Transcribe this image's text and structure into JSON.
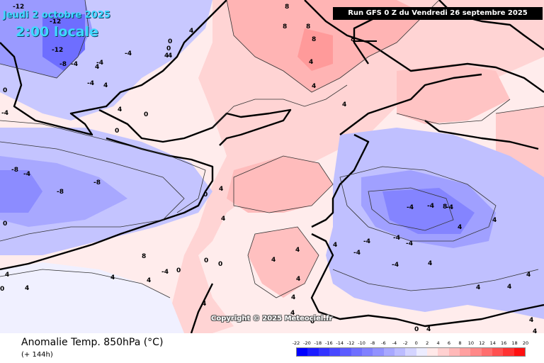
{
  "header": {
    "date": "Jeudi 2 octobre 2025",
    "time": "2:00 locale",
    "run_banner": "Run GFS 0 Z du Vendredi 26 septembre 2025"
  },
  "footer": {
    "title": "Anomalie Temp. 850hPa (°C)",
    "subtitle": "(+ 144h)",
    "copyright": "Copyright © 2025 Meteociel.fr"
  },
  "legend": {
    "ticks": [
      "-22",
      "-20",
      "-18",
      "-16",
      "-14",
      "-12",
      "-10",
      "-8",
      "-6",
      "-4",
      "-2",
      "0",
      "2",
      "4",
      "6",
      "8",
      "10",
      "12",
      "14",
      "16",
      "18",
      "20"
    ],
    "colors": [
      "#0000ff",
      "#1c1cff",
      "#3333ff",
      "#4848ff",
      "#5c5cff",
      "#6e6eff",
      "#8080ff",
      "#9292ff",
      "#a8a8ff",
      "#bcbcff",
      "#d4d4ff",
      "#ececff",
      "#ffe8e8",
      "#ffd0d0",
      "#ffb8b8",
      "#ffa0a0",
      "#ff8888",
      "#ff6e6e",
      "#ff5050",
      "#ff3232",
      "#ff1010"
    ]
  },
  "map": {
    "contour_labels": [
      "-12",
      "-12",
      "-12",
      "-8",
      "-4",
      "0",
      "0",
      "4",
      "4",
      "8",
      "8",
      "8",
      "8",
      "8",
      "4",
      "4",
      "4",
      "0",
      "0",
      "4",
      "4",
      "4",
      "4",
      "0",
      "-4",
      "-8",
      "-8",
      "-8",
      "-4",
      "-4",
      "-4",
      "-4",
      "4",
      "4",
      "0",
      "0",
      "4",
      "4",
      "-4",
      "0",
      "4",
      "8",
      "4",
      "4",
      "0",
      "-4",
      "-4",
      "-4",
      "-4",
      "4",
      "4",
      "4",
      "4",
      "4",
      "4",
      "4",
      "0",
      "4",
      "-4",
      "-4",
      "-4",
      "-4",
      "4",
      "4",
      "4",
      "4",
      "4",
      "4",
      "4",
      "0",
      "0",
      "0",
      "8"
    ]
  }
}
